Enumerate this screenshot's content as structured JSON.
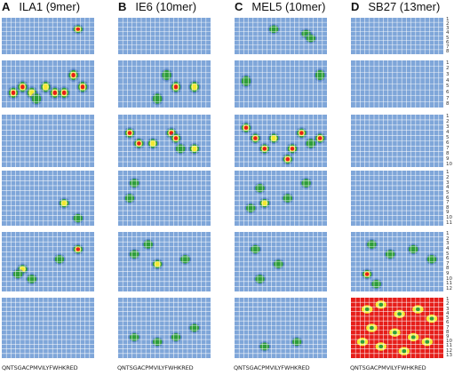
{
  "columns": [
    {
      "letter": "A",
      "title": "ILA1 (9mer)",
      "sequence": "QNTSGACPMVILYFWHKRED"
    },
    {
      "letter": "B",
      "title": "IE6 (10mer)",
      "sequence": "QNTSGACPMVILYFWHKRED"
    },
    {
      "letter": "C",
      "title": "MEL5 (10mer)",
      "sequence": "QNTSGACPMVILYFWHKRED"
    },
    {
      "letter": "D",
      "title": "SB27 (13mer)",
      "sequence": "QNTSGACPMVILYFWHKRED"
    }
  ],
  "row_numbers": [
    [
      "1",
      "2",
      "3",
      "4",
      "5",
      "6",
      "7",
      "8"
    ],
    [
      "1",
      "2",
      "3",
      "4",
      "5",
      "6",
      "7",
      "8"
    ],
    [
      "1",
      "2",
      "3",
      "4",
      "5",
      "6",
      "7",
      "8",
      "9",
      "10"
    ],
    [
      "1",
      "2",
      "3",
      "4",
      "5",
      "6",
      "7",
      "8",
      "9",
      "10",
      "11"
    ],
    [
      "1",
      "2",
      "3",
      "4",
      "5",
      "6",
      "7",
      "8",
      "9",
      "10",
      "11",
      "12"
    ],
    [
      "1",
      "2",
      "3",
      "4",
      "5",
      "6",
      "7",
      "8",
      "9",
      "10",
      "11",
      "12",
      "13"
    ]
  ],
  "colors": {
    "background": "#7fa6d9",
    "grid": "#ffffff",
    "green": "#2e9d3a",
    "yellow": "#f2e830",
    "red": "#e61e1a",
    "blue_dark": "#3f6fb8"
  },
  "hotspots": [
    [
      [
        [
          16,
          3,
          "r"
        ]
      ],
      [],
      [
        [
          8,
          3,
          "g"
        ],
        [
          15,
          4,
          "g"
        ],
        [
          16,
          5,
          "g"
        ]
      ],
      []
    ],
    [
      [
        [
          2,
          6,
          "r"
        ],
        [
          4,
          5,
          "r"
        ],
        [
          6,
          6,
          "y"
        ],
        [
          9,
          5,
          "y"
        ],
        [
          11,
          6,
          "r"
        ],
        [
          13,
          6,
          "r"
        ],
        [
          15,
          3,
          "r"
        ],
        [
          17,
          5,
          "r"
        ],
        [
          7,
          7,
          "g"
        ]
      ],
      [
        [
          10,
          3,
          "g"
        ],
        [
          12,
          5,
          "r"
        ],
        [
          16,
          5,
          "y"
        ],
        [
          8,
          7,
          "g"
        ]
      ],
      [
        [
          2,
          4,
          "g"
        ],
        [
          18,
          3,
          "g"
        ]
      ],
      []
    ],
    [
      [],
      [
        [
          2,
          4,
          "r"
        ],
        [
          4,
          6,
          "r"
        ],
        [
          7,
          6,
          "y"
        ],
        [
          11,
          4,
          "r"
        ],
        [
          12,
          5,
          "r"
        ],
        [
          13,
          7,
          "g"
        ],
        [
          16,
          7,
          "y"
        ]
      ],
      [
        [
          2,
          3,
          "r"
        ],
        [
          4,
          5,
          "r"
        ],
        [
          6,
          7,
          "r"
        ],
        [
          8,
          5,
          "y"
        ],
        [
          12,
          7,
          "r"
        ],
        [
          14,
          4,
          "r"
        ],
        [
          16,
          6,
          "g"
        ],
        [
          18,
          5,
          "r"
        ],
        [
          11,
          9,
          "r"
        ]
      ],
      []
    ],
    [
      [
        [
          13,
          7,
          "y"
        ],
        [
          16,
          10,
          "g"
        ]
      ],
      [
        [
          3,
          3,
          "g"
        ],
        [
          2,
          6,
          "g"
        ]
      ],
      [
        [
          5,
          4,
          "g"
        ],
        [
          6,
          7,
          "y"
        ],
        [
          3,
          8,
          "g"
        ],
        [
          11,
          6,
          "g"
        ],
        [
          15,
          3,
          "g"
        ]
      ],
      []
    ],
    [
      [
        [
          16,
          4,
          "r"
        ],
        [
          12,
          6,
          "g"
        ],
        [
          4,
          8,
          "y"
        ],
        [
          3,
          9,
          "g"
        ],
        [
          6,
          10,
          "g"
        ]
      ],
      [
        [
          3,
          5,
          "g"
        ],
        [
          8,
          7,
          "y"
        ],
        [
          6,
          3,
          "g"
        ],
        [
          14,
          6,
          "g"
        ]
      ],
      [
        [
          4,
          4,
          "g"
        ],
        [
          9,
          7,
          "g"
        ],
        [
          5,
          10,
          "g"
        ]
      ],
      [
        [
          4,
          3,
          "g"
        ],
        [
          8,
          5,
          "g"
        ],
        [
          13,
          4,
          "g"
        ],
        [
          17,
          6,
          "g"
        ],
        [
          3,
          9,
          "r"
        ],
        [
          5,
          11,
          "g"
        ]
      ]
    ],
    [
      [],
      [
        [
          3,
          9,
          "g"
        ],
        [
          8,
          10,
          "g"
        ],
        [
          12,
          9,
          "g"
        ],
        [
          16,
          7,
          "g"
        ]
      ],
      [
        [
          6,
          11,
          "g"
        ],
        [
          13,
          10,
          "g"
        ]
      ],
      "full"
    ]
  ]
}
